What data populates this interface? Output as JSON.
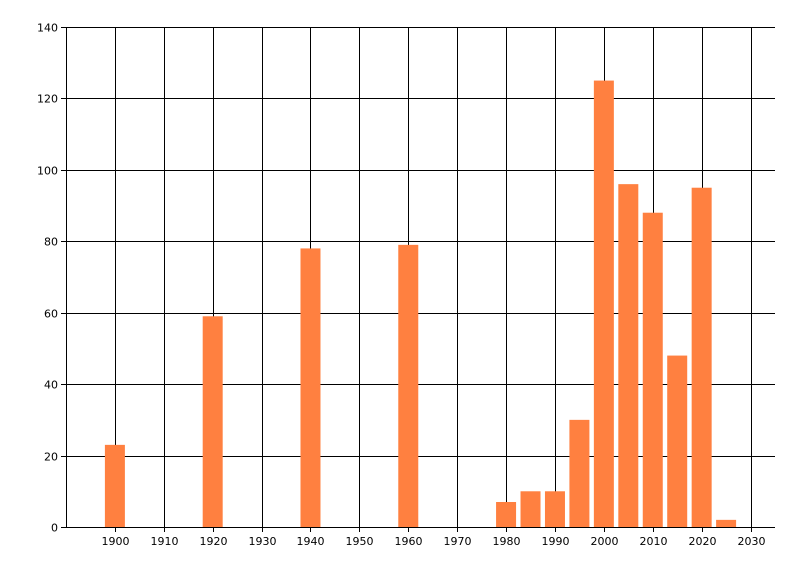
{
  "chart_data": {
    "type": "bar",
    "title": "",
    "xlabel": "",
    "ylabel": "",
    "x": [
      1900,
      1920,
      1940,
      1960,
      1980,
      1985,
      1990,
      1995,
      2000,
      2005,
      2010,
      2015,
      2020,
      2025
    ],
    "values": [
      23,
      59,
      78,
      79,
      7,
      10,
      10,
      30,
      125,
      96,
      88,
      48,
      95,
      2
    ],
    "xlim": [
      1890,
      2035
    ],
    "ylim": [
      0,
      140
    ],
    "x_ticks": [
      1900,
      1910,
      1920,
      1930,
      1940,
      1950,
      1960,
      1970,
      1980,
      1990,
      2000,
      2010,
      2020,
      2030
    ],
    "y_ticks": [
      0,
      20,
      40,
      60,
      80,
      100,
      120,
      140
    ],
    "grid": true,
    "bar_color": "#FF8040",
    "legend": "none"
  }
}
